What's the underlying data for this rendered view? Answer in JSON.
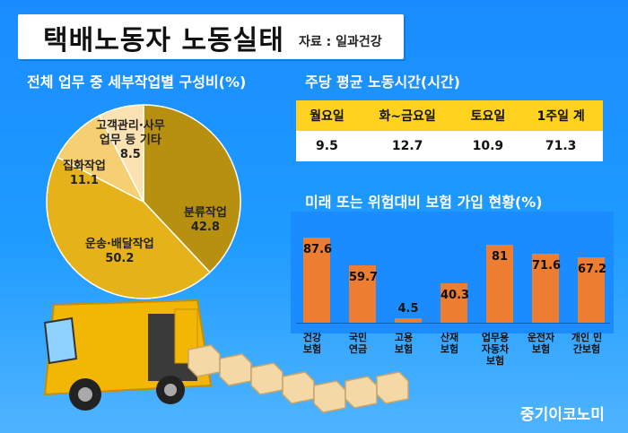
{
  "title": "택배노동자 노동실태",
  "source": "자료 : 일과건강",
  "brand": "중기이코노미",
  "pie_chart": {
    "heading": "전체 업무 중 세부작업별 구성비(%)",
    "labels": {
      "s0_name": "분류작업",
      "s0_value": "42.8",
      "s1_name": "운송·배달작업",
      "s1_value": "50.2",
      "s2_name": "집화작업",
      "s2_value": "11.1",
      "s3_name_1": "고객관리·사무",
      "s3_name_2": "업무 등 기타",
      "s3_value": "8.5"
    }
  },
  "table_section": {
    "heading": "주당 평균 노동시간(시간)",
    "headers": [
      "월요일",
      "화~금요일",
      "토요일",
      "1주일 계"
    ],
    "values": [
      "9.5",
      "12.7",
      "10.9",
      "71.3"
    ]
  },
  "bar_section": {
    "heading": "미래 또는 위험대비 보험 가입 현황(%)",
    "value_labels": [
      "87.6",
      "59.7",
      "4.5",
      "40.3",
      "81",
      "71.6",
      "67.2"
    ],
    "cat_labels": {
      "c0_1": "건강",
      "c0_2": "보험",
      "c1_1": "국민",
      "c1_2": "연금",
      "c2_1": "고용",
      "c2_2": "보험",
      "c3_1": "산재",
      "c3_2": "보험",
      "c4_1": "업무용",
      "c4_2": "자동차",
      "c4_3": "보험",
      "c5_1": "운전자",
      "c5_2": "보험",
      "c6_1": "개인 민",
      "c6_2": "간보험"
    }
  },
  "chart_data": [
    {
      "type": "pie",
      "title": "전체 업무 중 세부작업별 구성비(%)",
      "categories": [
        "분류작업",
        "운송·배달작업",
        "집화작업",
        "고객관리·사무 업무 등 기타"
      ],
      "values": [
        42.8,
        50.2,
        11.1,
        8.5
      ],
      "colors": [
        "#b8900f",
        "#e6b21a",
        "#f6cf73",
        "#fbe2b0"
      ]
    },
    {
      "type": "table",
      "title": "주당 평균 노동시간(시간)",
      "categories": [
        "월요일",
        "화~금요일",
        "토요일",
        "1주일 계"
      ],
      "values": [
        9.5,
        12.7,
        10.9,
        71.3
      ]
    },
    {
      "type": "bar",
      "title": "미래 또는 위험대비 보험 가입 현황(%)",
      "categories": [
        "건강 보험",
        "국민 연금",
        "고용 보험",
        "산재 보험",
        "업무용 자동차 보험",
        "운전자 보험",
        "개인 민간보험"
      ],
      "values": [
        87.6,
        59.7,
        4.5,
        40.3,
        81,
        71.6,
        67.2
      ],
      "ylim": [
        0,
        100
      ],
      "color": "#ed7d31"
    }
  ]
}
